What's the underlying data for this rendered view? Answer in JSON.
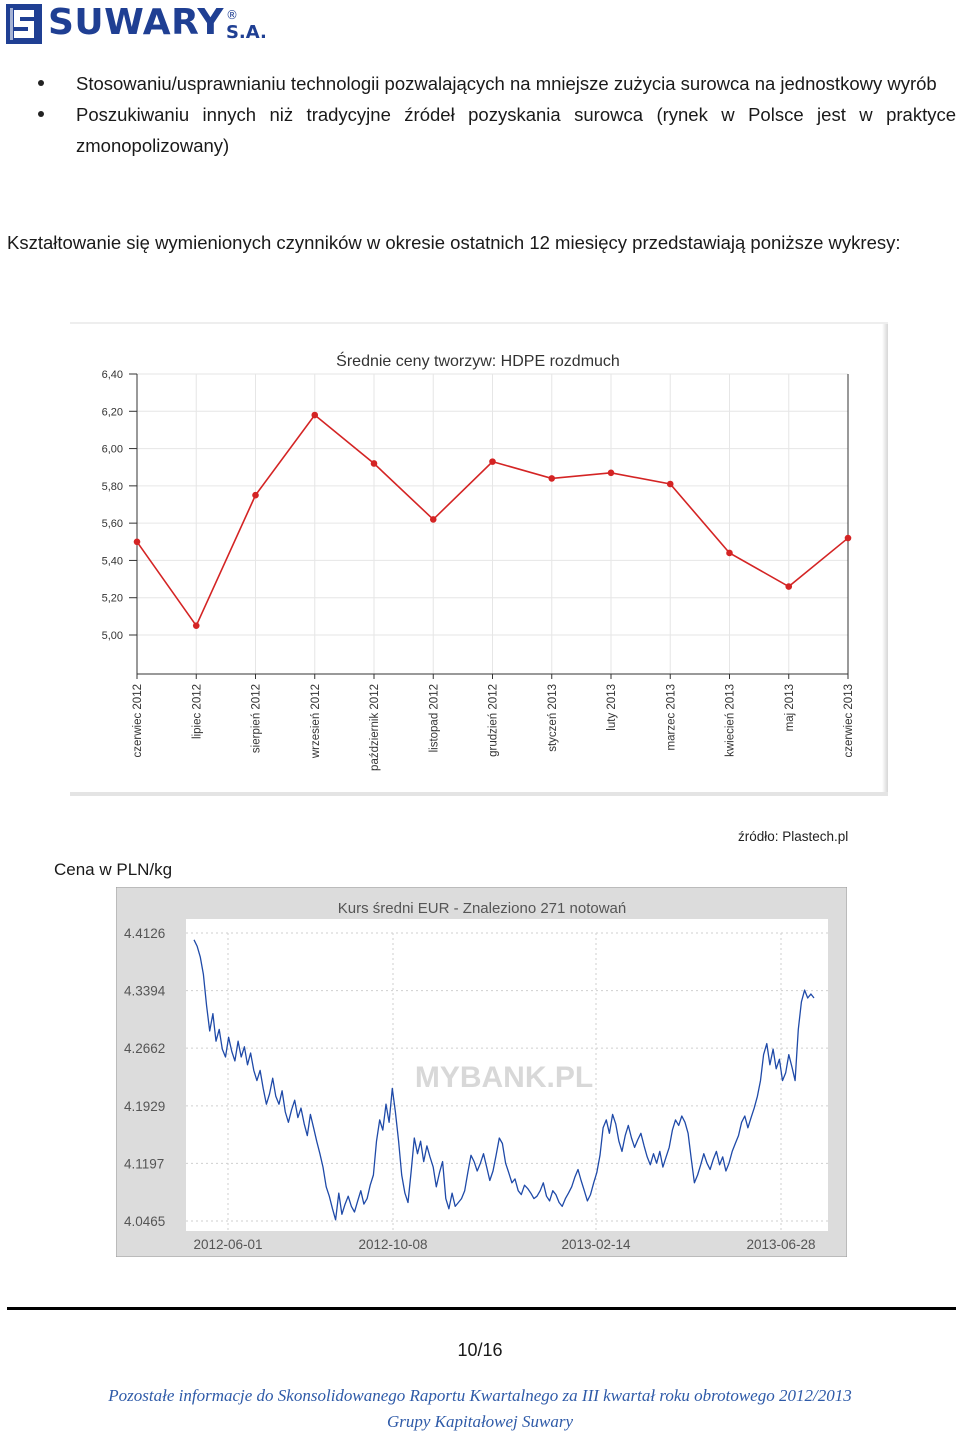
{
  "header": {
    "brand": "SUWARY",
    "brand_suffix": "S.A.",
    "registered": "®"
  },
  "bullets": [
    "Stosowaniu/usprawnianiu technologii pozwalających na mniejsze zużycia surowca na jednostkowy wyrób",
    "Poszukiwaniu innych niż tradycyjne źródeł pozyskania surowca (rynek w Polsce jest w praktyce zmonopolizowany)"
  ],
  "paragraph": "Kształtowanie się wymienionych czynników w okresie ostatnich 12 miesięcy przedstawiają poniższe wykresy:",
  "chart_data": [
    {
      "type": "line",
      "title": "Średnie ceny tworzyw: HDPE rozdmuch",
      "categories": [
        "czerwiec 2012",
        "lipiec 2012",
        "sierpień 2012",
        "wrzesień 2012",
        "październik 2012",
        "listopad 2012",
        "grudzień 2012",
        "styczeń 2013",
        "luty 2013",
        "marzec 2013",
        "kwiecień 2013",
        "maj 2013",
        "czerwiec 2013"
      ],
      "values": [
        5.5,
        5.05,
        5.75,
        6.18,
        5.92,
        5.62,
        5.93,
        5.84,
        5.87,
        5.81,
        5.44,
        5.26,
        5.52
      ],
      "yticks": [
        "6,40",
        "6,20",
        "6,00",
        "5,80",
        "5,60",
        "5,40",
        "5,20",
        "5,00"
      ],
      "ylim": [
        5.0,
        6.4
      ],
      "color": "#d42424",
      "grid": true,
      "source": "źródło: Plastech.pl",
      "ylabel": "Cena w PLN/kg"
    },
    {
      "type": "line",
      "title": "Kurs średni EUR - Znaleziono 271 notowań",
      "watermark": "MYBANK.PL",
      "xticks": [
        "2012-06-01",
        "2012-10-08",
        "2013-02-14",
        "2013-06-28"
      ],
      "yticks": [
        "4.4126",
        "4.3394",
        "4.2662",
        "4.1929",
        "4.1197",
        "4.0465"
      ],
      "ylim": [
        4.0465,
        4.4126
      ],
      "color": "#1f4aa8",
      "grid": true,
      "values": [
        4.404,
        4.396,
        4.382,
        4.36,
        4.32,
        4.288,
        4.31,
        4.275,
        4.29,
        4.265,
        4.255,
        4.28,
        4.262,
        4.25,
        4.275,
        4.255,
        4.268,
        4.245,
        4.26,
        4.238,
        4.225,
        4.238,
        4.215,
        4.195,
        4.208,
        4.228,
        4.205,
        4.195,
        4.212,
        4.185,
        4.172,
        4.188,
        4.2,
        4.178,
        4.19,
        4.17,
        4.155,
        4.182,
        4.165,
        4.148,
        4.132,
        4.115,
        4.09,
        4.078,
        4.062,
        4.048,
        4.082,
        4.055,
        4.068,
        4.078,
        4.065,
        4.058,
        4.072,
        4.085,
        4.068,
        4.075,
        4.092,
        4.105,
        4.148,
        4.175,
        4.162,
        4.195,
        4.172,
        4.215,
        4.185,
        4.148,
        4.105,
        4.082,
        4.07,
        4.11,
        4.152,
        4.132,
        4.148,
        4.122,
        4.142,
        4.128,
        4.115,
        4.09,
        4.108,
        4.122,
        4.075,
        4.062,
        4.082,
        4.065,
        4.07,
        4.075,
        4.085,
        4.108,
        4.13,
        4.122,
        4.11,
        4.12,
        4.132,
        4.115,
        4.098,
        4.11,
        4.13,
        4.152,
        4.145,
        4.12,
        4.108,
        4.095,
        4.1,
        4.085,
        4.08,
        4.092,
        4.088,
        4.082,
        4.075,
        4.078,
        4.085,
        4.095,
        4.078,
        4.072,
        4.085,
        4.08,
        4.07,
        4.065,
        4.075,
        4.082,
        4.09,
        4.102,
        4.112,
        4.098,
        4.085,
        4.072,
        4.08,
        4.095,
        4.108,
        4.13,
        4.165,
        4.175,
        4.158,
        4.182,
        4.17,
        4.148,
        4.135,
        4.155,
        4.168,
        4.152,
        4.14,
        4.15,
        4.158,
        4.142,
        4.128,
        4.118,
        4.132,
        4.12,
        4.135,
        4.115,
        4.128,
        4.14,
        4.162,
        4.175,
        4.168,
        4.18,
        4.172,
        4.158,
        4.125,
        4.095,
        4.105,
        4.118,
        4.132,
        4.12,
        4.112,
        4.125,
        4.135,
        4.118,
        4.128,
        4.11,
        4.12,
        4.135,
        4.145,
        4.155,
        4.172,
        4.18,
        4.165,
        4.178,
        4.19,
        4.205,
        4.225,
        4.258,
        4.272,
        4.245,
        4.265,
        4.24,
        4.252,
        4.225,
        4.235,
        4.258,
        4.242,
        4.225,
        4.29,
        4.325,
        4.34,
        4.33,
        4.335,
        4.33
      ]
    }
  ],
  "page_number": "10/16",
  "footer": [
    "Pozostałe informacje do Skonsolidowanego Raportu Kwartalnego za III kwartał roku obrotowego 2012/2013",
    "Grupy Kapitałowej Suwary"
  ]
}
